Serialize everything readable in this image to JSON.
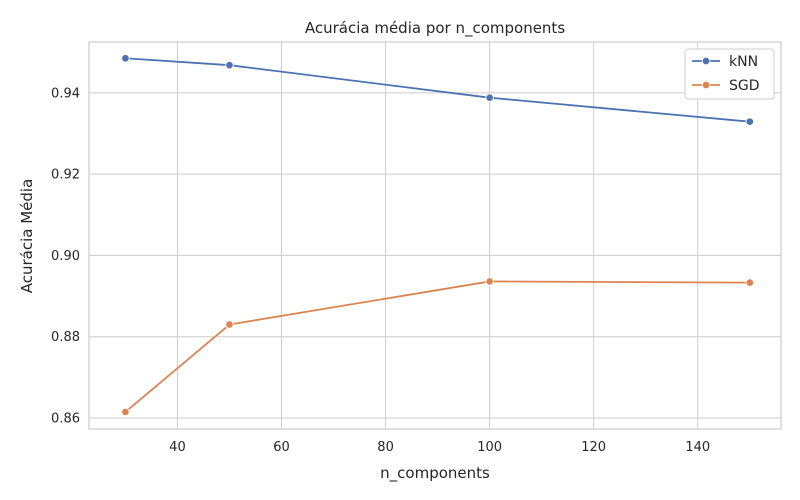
{
  "chart_data": {
    "type": "line",
    "title": "Acurácia média por n_components",
    "xlabel": "n_components",
    "ylabel": "Acurácia Média",
    "x": [
      30,
      50,
      100,
      150
    ],
    "series": [
      {
        "name": "kNN",
        "color": "#4c72b0",
        "values": [
          0.9485,
          0.9468,
          0.9388,
          0.9329
        ]
      },
      {
        "name": "SGD",
        "color": "#dd8452",
        "values": [
          0.8615,
          0.883,
          0.8936,
          0.8933
        ]
      }
    ],
    "xlim": [
      23,
      156
    ],
    "ylim": [
      0.8573,
      0.9525
    ],
    "xticks": [
      40,
      60,
      80,
      100,
      120,
      140
    ],
    "yticks": [
      0.86,
      0.88,
      0.9,
      0.92,
      0.94
    ],
    "xtick_labels": [
      "40",
      "60",
      "80",
      "100",
      "120",
      "140"
    ],
    "ytick_labels": [
      "0.86",
      "0.88",
      "0.90",
      "0.92",
      "0.94"
    ],
    "grid": true,
    "legend_position": "top-right",
    "marker": "circle"
  }
}
